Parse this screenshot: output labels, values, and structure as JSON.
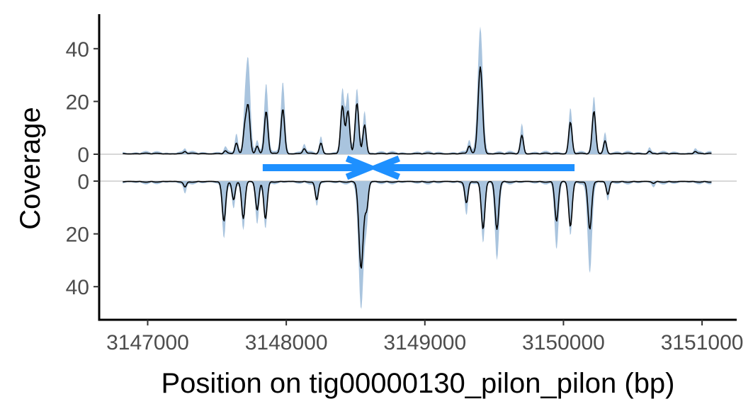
{
  "chart_data": {
    "type": "area",
    "xlabel": "Position on tig00000130_pilon_pilon (bp)",
    "ylabel": "Coverage",
    "x_ticks": [
      3147000,
      3148000,
      3149000,
      3150000,
      3151000
    ],
    "y_ticks_top": [
      0,
      20,
      40
    ],
    "y_ticks_bottom": [
      0,
      20,
      40
    ],
    "xlim": [
      3146650,
      3151250
    ],
    "ylim_top": [
      0,
      53
    ],
    "ylim_bottom": [
      0,
      53
    ],
    "grid": false,
    "colors": {
      "envelope": "#a9c4de",
      "median_line": "#000000",
      "gene": "#1e90ff",
      "baseline": "#cccccc"
    },
    "gene_arrows": [
      {
        "start": 3147830,
        "end": 3148600,
        "direction": "forward"
      },
      {
        "start": 3148650,
        "end": 3150080,
        "direction": "reverse"
      }
    ],
    "series": [
      {
        "strand": "forward",
        "peaks": [
          {
            "x": 3147270,
            "median": 0.8,
            "max": 1.5
          },
          {
            "x": 3147560,
            "median": 1,
            "max": 2
          },
          {
            "x": 3147640,
            "median": 4,
            "max": 7
          },
          {
            "x": 3147700,
            "median": 9,
            "max": 12
          },
          {
            "x": 3147725,
            "median": 18,
            "max": 35
          },
          {
            "x": 3147790,
            "median": 3,
            "max": 5
          },
          {
            "x": 3147855,
            "median": 16,
            "max": 26
          },
          {
            "x": 3147975,
            "median": 17,
            "max": 27
          },
          {
            "x": 3148130,
            "median": 2,
            "max": 3.5
          },
          {
            "x": 3148250,
            "median": 4,
            "max": 6
          },
          {
            "x": 3148405,
            "median": 18,
            "max": 24
          },
          {
            "x": 3148445,
            "median": 16,
            "max": 22
          },
          {
            "x": 3148510,
            "median": 19,
            "max": 24
          },
          {
            "x": 3148565,
            "median": 11,
            "max": 16
          },
          {
            "x": 3149320,
            "median": 3,
            "max": 5
          },
          {
            "x": 3149400,
            "median": 33,
            "max": 48
          },
          {
            "x": 3149700,
            "median": 7,
            "max": 11
          },
          {
            "x": 3150050,
            "median": 12,
            "max": 17
          },
          {
            "x": 3150220,
            "median": 16,
            "max": 21
          },
          {
            "x": 3150300,
            "median": 5,
            "max": 8
          },
          {
            "x": 3150620,
            "median": 1,
            "max": 2
          },
          {
            "x": 3150950,
            "median": 0.8,
            "max": 1.5
          }
        ]
      },
      {
        "strand": "reverse",
        "peaks": [
          {
            "x": 3147270,
            "median": 2,
            "max": 4
          },
          {
            "x": 3147550,
            "median": 15,
            "max": 21
          },
          {
            "x": 3147620,
            "median": 7,
            "max": 10
          },
          {
            "x": 3147690,
            "median": 14,
            "max": 18
          },
          {
            "x": 3147790,
            "median": 11,
            "max": 16
          },
          {
            "x": 3147850,
            "median": 14,
            "max": 17
          },
          {
            "x": 3148220,
            "median": 7,
            "max": 9
          },
          {
            "x": 3148540,
            "median": 33,
            "max": 48
          },
          {
            "x": 3148580,
            "median": 10,
            "max": 14
          },
          {
            "x": 3149300,
            "median": 8,
            "max": 12
          },
          {
            "x": 3149420,
            "median": 18,
            "max": 23
          },
          {
            "x": 3149520,
            "median": 18,
            "max": 29
          },
          {
            "x": 3149950,
            "median": 15,
            "max": 25
          },
          {
            "x": 3150050,
            "median": 17,
            "max": 20
          },
          {
            "x": 3150190,
            "median": 18,
            "max": 34
          },
          {
            "x": 3150320,
            "median": 5,
            "max": 7
          },
          {
            "x": 3150650,
            "median": 0.6,
            "max": 1.5
          }
        ]
      }
    ]
  }
}
